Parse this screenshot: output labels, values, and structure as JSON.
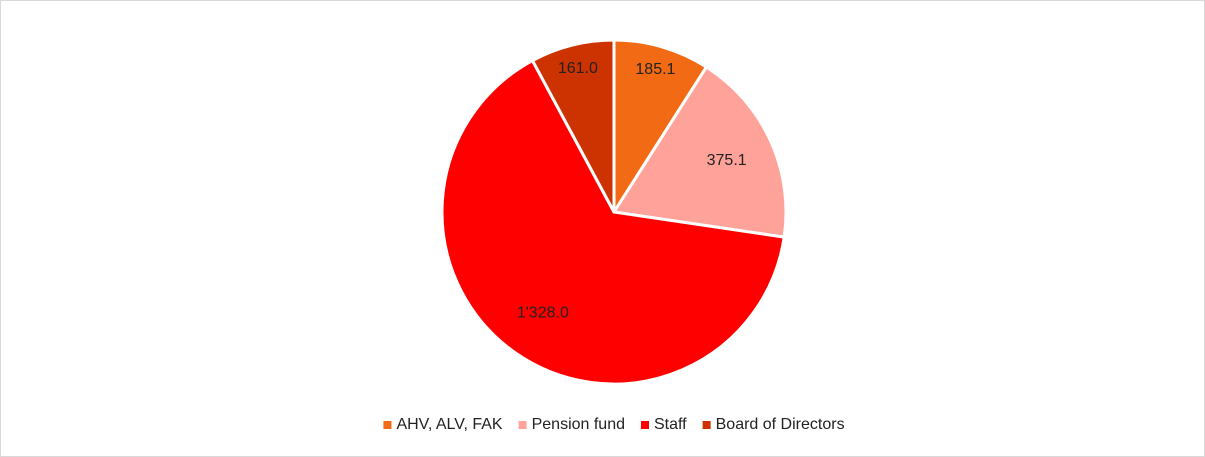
{
  "chart_data": {
    "type": "pie",
    "categories": [
      "AHV, ALV, FAK",
      "Pension fund",
      "Staff",
      "Board of Directors"
    ],
    "values": [
      185.1,
      375.1,
      1328.0,
      161.0
    ],
    "value_labels": [
      "185.1",
      "375.1",
      "1'328.0",
      "161.0"
    ],
    "colors": [
      "#f26b14",
      "#ffa39a",
      "#ff0000",
      "#cc3300"
    ],
    "legend": "bottom"
  }
}
